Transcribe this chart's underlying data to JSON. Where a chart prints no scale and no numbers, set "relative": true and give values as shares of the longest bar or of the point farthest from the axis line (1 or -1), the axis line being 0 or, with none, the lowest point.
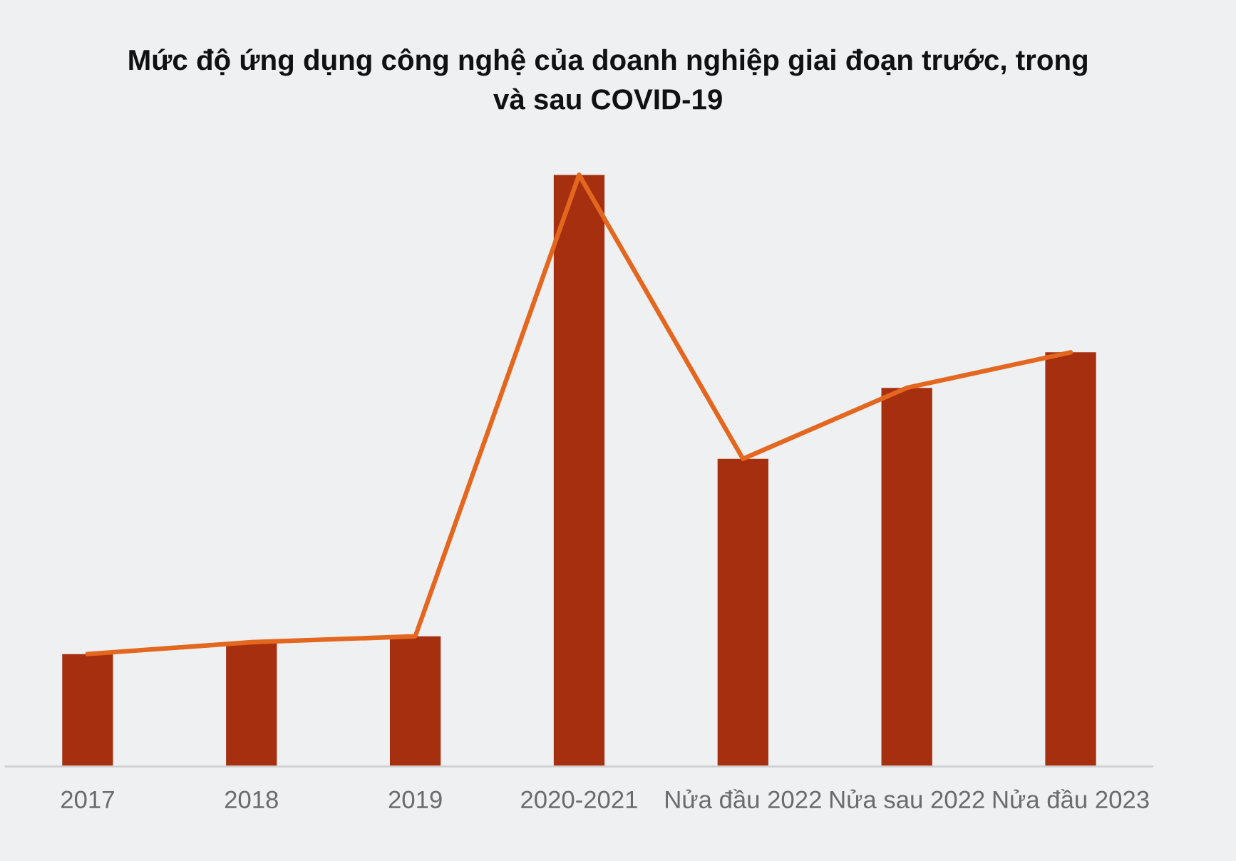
{
  "chart_data": {
    "type": "bar",
    "title": "Mức độ ứng dụng công nghệ của doanh nghiệp giai đoạn trước, trong\nvà sau COVID-19",
    "categories": [
      "2017",
      "2018",
      "2019",
      "2020-2021",
      "Nửa đầu 2022",
      "Nửa sau 2022",
      "Nửa đầu 2023"
    ],
    "relative": true,
    "series": [
      {
        "color": "#a52f0f",
        "values": [
          0.19,
          0.21,
          0.22,
          1,
          0.52,
          0.64,
          0.7
        ]
      },
      {
        "type": "line",
        "color": "#e3671f",
        "values": [
          0.19,
          0.21,
          0.22,
          1,
          0.52,
          0.64,
          0.7
        ]
      }
    ]
  }
}
